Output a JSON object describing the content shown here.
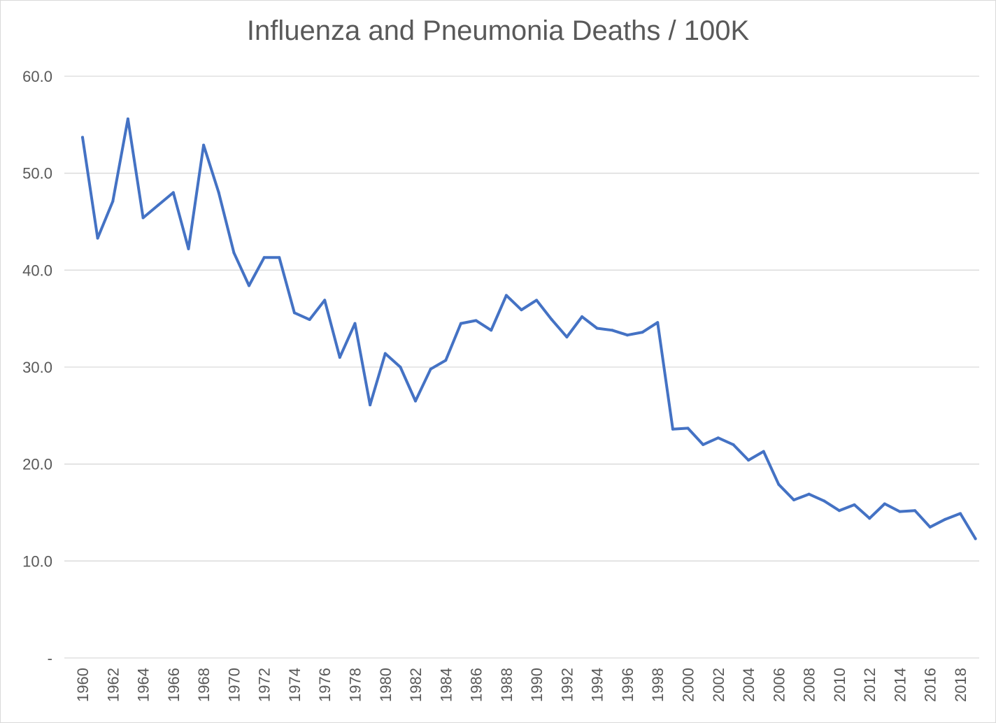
{
  "chart_data": {
    "type": "line",
    "title": "Influenza and Pneumonia Deaths / 100K",
    "xlabel": "",
    "ylabel": "",
    "ylim": [
      0,
      60
    ],
    "yticks": [
      "-",
      "10.0",
      "20.0",
      "30.0",
      "40.0",
      "50.0",
      "60.0"
    ],
    "ytick_values": [
      0,
      10,
      20,
      30,
      40,
      50,
      60
    ],
    "grid": true,
    "legend": "none",
    "line_color": "#4472C4",
    "x": [
      1960,
      1961,
      1962,
      1963,
      1964,
      1965,
      1966,
      1967,
      1968,
      1969,
      1970,
      1971,
      1972,
      1973,
      1974,
      1975,
      1976,
      1977,
      1978,
      1979,
      1980,
      1981,
      1982,
      1983,
      1984,
      1985,
      1986,
      1987,
      1988,
      1989,
      1990,
      1991,
      1992,
      1993,
      1994,
      1995,
      1996,
      1997,
      1998,
      1999,
      2000,
      2001,
      2002,
      2003,
      2004,
      2005,
      2006,
      2007,
      2008,
      2009,
      2010,
      2011,
      2012,
      2013,
      2014,
      2015,
      2016,
      2017,
      2018,
      2019
    ],
    "series": [
      {
        "name": "Influenza and Pneumonia Deaths / 100K",
        "values": [
          53.7,
          43.3,
          47.1,
          55.6,
          45.4,
          46.7,
          48.0,
          42.2,
          52.9,
          48.0,
          41.8,
          38.4,
          41.3,
          41.3,
          35.6,
          34.9,
          36.9,
          31.0,
          34.5,
          26.1,
          31.4,
          30.0,
          26.5,
          29.8,
          30.7,
          34.5,
          34.8,
          33.8,
          37.4,
          35.9,
          36.9,
          34.9,
          33.1,
          35.2,
          34.0,
          33.8,
          33.3,
          33.6,
          34.6,
          23.6,
          23.7,
          22.0,
          22.7,
          22.0,
          20.4,
          21.3,
          17.9,
          16.3,
          16.9,
          16.2,
          15.2,
          15.8,
          14.4,
          15.9,
          15.1,
          15.2,
          13.5,
          14.3,
          14.9,
          12.3
        ]
      }
    ],
    "xtick_labels": [
      "1960",
      "1962",
      "1964",
      "1966",
      "1968",
      "1970",
      "1972",
      "1974",
      "1976",
      "1978",
      "1980",
      "1982",
      "1984",
      "1986",
      "1988",
      "1990",
      "1992",
      "1994",
      "1996",
      "1998",
      "2000",
      "2002",
      "2004",
      "2006",
      "2008",
      "2010",
      "2012",
      "2014",
      "2016",
      "2018"
    ]
  }
}
